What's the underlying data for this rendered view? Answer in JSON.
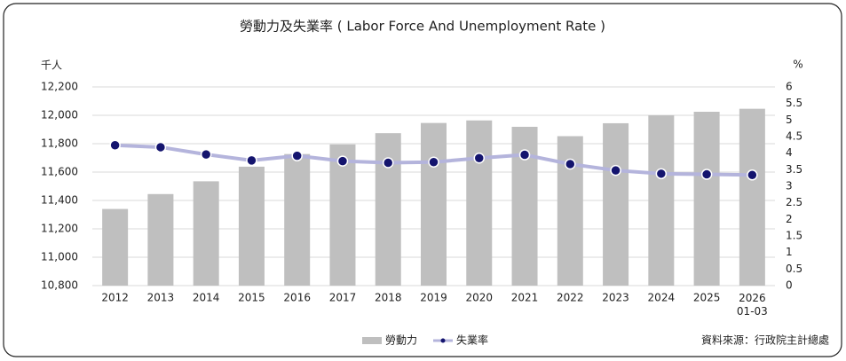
{
  "chart_data": {
    "type": "bar-line",
    "title": "勞動力及失業率 ( Labor Force And Unemployment Rate )",
    "y_label": "千人",
    "y2_label": "%",
    "source": "資料來源：行政院主計總處",
    "categories": [
      "2012",
      "2013",
      "2014",
      "2015",
      "2016",
      "2017",
      "2018",
      "2019",
      "2020",
      "2021",
      "2022",
      "2023",
      "2024",
      "2025",
      "2026\n01-03"
    ],
    "series": [
      {
        "name": "勞動力",
        "type": "bar",
        "color": "#bfbfbf",
        "values": [
          11340,
          11445,
          11535,
          11638,
          11727,
          11795,
          11874,
          11946,
          11964,
          11919,
          11853,
          11944,
          12000,
          12025,
          12046
        ]
      },
      {
        "name": "失業率",
        "type": "line",
        "axis": "y2",
        "color": "#b4b4dc",
        "marker_color": "#14146e",
        "values": [
          4.24,
          4.18,
          3.96,
          3.78,
          3.92,
          3.76,
          3.71,
          3.73,
          3.85,
          3.95,
          3.67,
          3.48,
          3.38,
          3.36,
          3.34
        ]
      }
    ],
    "ylim": [
      10800,
      12200
    ],
    "yticks": [
      {
        "value": 10800,
        "label": "10,800"
      },
      {
        "value": 11000,
        "label": "11,000"
      },
      {
        "value": 11200,
        "label": "11,200"
      },
      {
        "value": 11400,
        "label": "11,400"
      },
      {
        "value": 11600,
        "label": "11,600"
      },
      {
        "value": 11800,
        "label": "11,800"
      },
      {
        "value": 12000,
        "label": "12,000"
      },
      {
        "value": 12200,
        "label": "12,200"
      }
    ],
    "y2lim": [
      0,
      6
    ],
    "y2ticks": [
      0,
      0.5,
      1,
      1.5,
      2,
      2.5,
      3,
      3.5,
      4,
      4.5,
      5,
      5.5,
      6
    ],
    "grid": true
  }
}
